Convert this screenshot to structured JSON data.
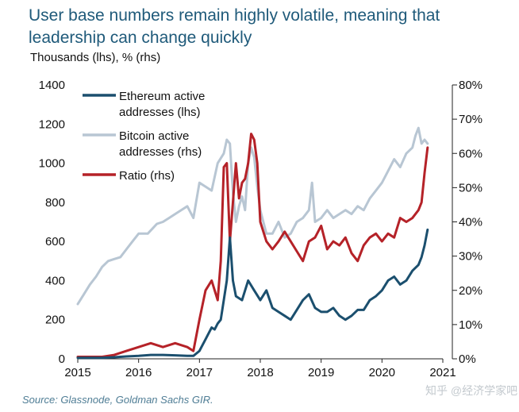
{
  "title": "User base numbers remain highly volatile, meaning that leadership can change quickly",
  "subtitle": "Thousands (lhs), % (rhs)",
  "source": "Source: Glassnode, Goldman Sachs GIR.",
  "watermark": "知乎 @经济学家吧",
  "chart_data": {
    "type": "line",
    "x_ticks": [
      "2015",
      "2016",
      "2017",
      "2018",
      "2019",
      "2020",
      "2021"
    ],
    "xlim": [
      2015,
      2021
    ],
    "y_left": {
      "label": "Thousands",
      "ylim": [
        0,
        1400
      ],
      "ticks": [
        "0",
        "200",
        "400",
        "600",
        "800",
        "1000",
        "1200",
        "1400"
      ]
    },
    "y_right": {
      "label": "%",
      "ylim": [
        0,
        80
      ],
      "ticks": [
        "0%",
        "10%",
        "20%",
        "30%",
        "40%",
        "50%",
        "60%",
        "70%",
        "80%"
      ]
    },
    "legend": {
      "placement": "top-left",
      "entries": [
        {
          "label": "Ethereum active addresses (lhs)",
          "lines": [
            "Ethereum active",
            "addresses (lhs)"
          ],
          "color": "#1b4f6e"
        },
        {
          "label": "Bitcoin active addresses (rhs)",
          "lines": [
            "Bitcoin active",
            "addresses (rhs)"
          ],
          "color": "#b8c6d3"
        },
        {
          "label": "Ratio (rhs)",
          "lines": [
            "Ratio (rhs)"
          ],
          "color": "#b52228"
        }
      ]
    },
    "series": [
      {
        "name": "Bitcoin active addresses (rhs)",
        "axis": "left",
        "color": "#b8c6d3",
        "x": [
          2015.0,
          2015.1,
          2015.2,
          2015.3,
          2015.4,
          2015.5,
          2015.6,
          2015.7,
          2015.8,
          2015.9,
          2016.0,
          2016.15,
          2016.3,
          2016.4,
          2016.5,
          2016.6,
          2016.7,
          2016.8,
          2016.9,
          2017.0,
          2017.1,
          2017.2,
          2017.3,
          2017.4,
          2017.45,
          2017.5,
          2017.55,
          2017.6,
          2017.65,
          2017.7,
          2017.75,
          2017.8,
          2017.85,
          2017.9,
          2017.95,
          2018.0,
          2018.1,
          2018.2,
          2018.3,
          2018.4,
          2018.5,
          2018.6,
          2018.7,
          2018.8,
          2018.85,
          2018.9,
          2019.0,
          2019.1,
          2019.2,
          2019.3,
          2019.4,
          2019.5,
          2019.6,
          2019.7,
          2019.8,
          2019.9,
          2020.0,
          2020.1,
          2020.2,
          2020.3,
          2020.4,
          2020.5,
          2020.55,
          2020.6,
          2020.65,
          2020.7,
          2020.75
        ],
        "values": [
          280,
          330,
          380,
          420,
          470,
          500,
          510,
          520,
          560,
          600,
          640,
          640,
          690,
          700,
          720,
          740,
          760,
          780,
          720,
          900,
          880,
          860,
          1000,
          1050,
          1120,
          1100,
          850,
          700,
          780,
          830,
          760,
          1000,
          1080,
          1030,
          880,
          760,
          640,
          640,
          700,
          620,
          640,
          700,
          720,
          760,
          900,
          700,
          720,
          760,
          720,
          740,
          760,
          740,
          780,
          760,
          820,
          860,
          900,
          960,
          1020,
          980,
          1050,
          1080,
          1140,
          1180,
          1100,
          1120,
          1100
        ]
      },
      {
        "name": "Ratio (rhs)",
        "axis": "left",
        "color": "#b52228",
        "x": [
          2015.0,
          2015.2,
          2015.4,
          2015.6,
          2015.8,
          2016.0,
          2016.2,
          2016.4,
          2016.6,
          2016.8,
          2016.9,
          2017.0,
          2017.1,
          2017.2,
          2017.3,
          2017.35,
          2017.4,
          2017.45,
          2017.5,
          2017.55,
          2017.6,
          2017.65,
          2017.7,
          2017.75,
          2017.8,
          2017.85,
          2017.9,
          2017.95,
          2018.0,
          2018.1,
          2018.2,
          2018.3,
          2018.4,
          2018.5,
          2018.6,
          2018.7,
          2018.8,
          2018.9,
          2019.0,
          2019.1,
          2019.2,
          2019.3,
          2019.4,
          2019.5,
          2019.6,
          2019.7,
          2019.8,
          2019.9,
          2020.0,
          2020.1,
          2020.2,
          2020.3,
          2020.4,
          2020.5,
          2020.6,
          2020.65,
          2020.7,
          2020.75
        ],
        "values": [
          10,
          10,
          10,
          20,
          40,
          60,
          80,
          60,
          80,
          60,
          40,
          200,
          350,
          400,
          300,
          500,
          980,
          1000,
          600,
          800,
          1000,
          820,
          900,
          920,
          1000,
          1150,
          1120,
          1000,
          700,
          600,
          560,
          600,
          650,
          600,
          550,
          500,
          600,
          620,
          680,
          560,
          600,
          580,
          620,
          540,
          500,
          580,
          620,
          640,
          600,
          640,
          620,
          720,
          700,
          720,
          760,
          800,
          950,
          1080
        ]
      },
      {
        "name": "Ethereum active addresses (lhs)",
        "axis": "left",
        "color": "#1b4f6e",
        "x": [
          2015.0,
          2015.2,
          2015.4,
          2015.6,
          2015.8,
          2016.0,
          2016.2,
          2016.4,
          2016.6,
          2016.8,
          2016.9,
          2017.0,
          2017.1,
          2017.2,
          2017.25,
          2017.3,
          2017.35,
          2017.4,
          2017.45,
          2017.5,
          2017.55,
          2017.6,
          2017.7,
          2017.8,
          2017.9,
          2018.0,
          2018.1,
          2018.2,
          2018.3,
          2018.4,
          2018.5,
          2018.6,
          2018.7,
          2018.8,
          2018.9,
          2019.0,
          2019.1,
          2019.2,
          2019.3,
          2019.4,
          2019.5,
          2019.6,
          2019.7,
          2019.8,
          2019.9,
          2020.0,
          2020.1,
          2020.2,
          2020.3,
          2020.4,
          2020.5,
          2020.6,
          2020.65,
          2020.7,
          2020.75
        ],
        "values": [
          5,
          5,
          5,
          8,
          12,
          15,
          20,
          20,
          18,
          15,
          15,
          40,
          100,
          160,
          150,
          180,
          200,
          300,
          400,
          620,
          400,
          320,
          300,
          400,
          350,
          300,
          350,
          260,
          240,
          220,
          200,
          250,
          300,
          330,
          260,
          240,
          240,
          260,
          220,
          200,
          220,
          250,
          250,
          300,
          320,
          350,
          400,
          420,
          380,
          400,
          450,
          480,
          520,
          580,
          660
        ]
      }
    ]
  }
}
